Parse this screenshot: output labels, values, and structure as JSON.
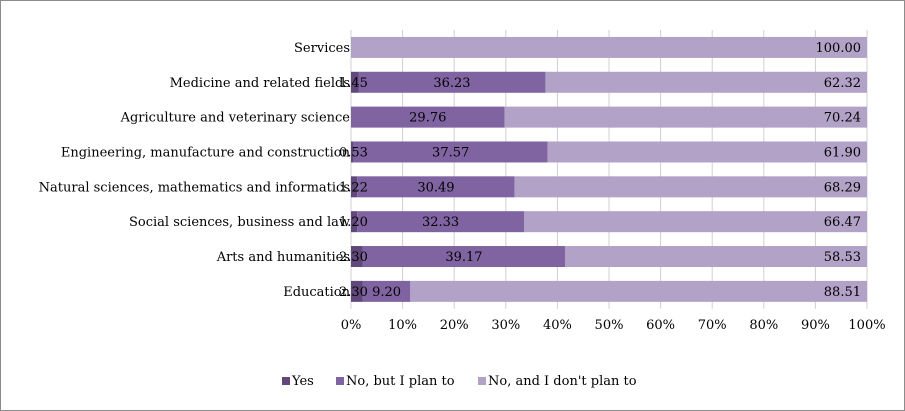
{
  "chart_data": {
    "type": "bar",
    "orientation": "horizontal",
    "stacked": true,
    "percent": true,
    "categories": [
      "Services",
      "Medicine and related fields",
      "Agriculture and veterinary science",
      "Engineering, manufacture and construction",
      "Natural sciences, mathematics and informatics",
      "Social sciences, business and law",
      "Arts and humanities",
      "Education"
    ],
    "series": [
      {
        "name": "Yes",
        "color": "#60497a",
        "values": [
          null,
          1.45,
          null,
          0.53,
          1.22,
          1.2,
          2.3,
          2.3
        ],
        "labels": [
          "",
          "1.45",
          "",
          "0.53",
          "1.22",
          "1.20",
          "2.30",
          "2.30"
        ]
      },
      {
        "name": "No, but I plan to",
        "color": "#8064a2",
        "values": [
          null,
          36.23,
          29.76,
          37.57,
          30.49,
          32.33,
          39.17,
          9.2
        ],
        "labels": [
          "",
          "36.23",
          "29.76",
          "37.57",
          "30.49",
          "32.33",
          "39.17",
          "9.20"
        ]
      },
      {
        "name": "No, and I don't plan to",
        "color": "#b3a2c7",
        "values": [
          100.0,
          62.32,
          70.24,
          61.9,
          68.29,
          66.47,
          58.53,
          88.51
        ],
        "labels": [
          "100.00",
          "62.32",
          "70.24",
          "61.90",
          "68.29",
          "66.47",
          "58.53",
          "88.51"
        ]
      }
    ],
    "x_ticks": [
      "0%",
      "10%",
      "20%",
      "30%",
      "40%",
      "50%",
      "60%",
      "70%",
      "80%",
      "90%",
      "100%"
    ],
    "xlim": [
      0,
      100
    ],
    "grid": true,
    "legend_position": "bottom"
  }
}
